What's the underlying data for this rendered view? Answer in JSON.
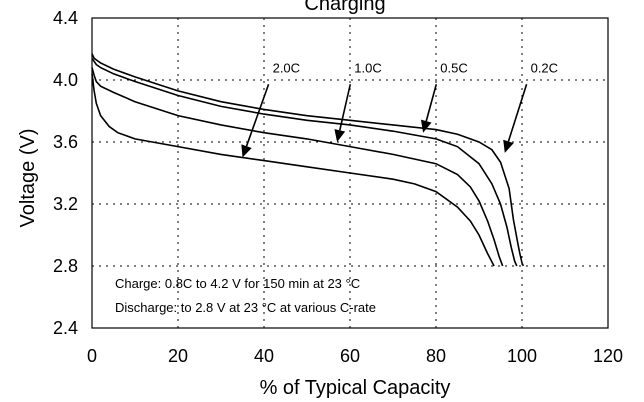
{
  "chart_data": {
    "type": "line",
    "title": "Charging",
    "xlabel": "% of Typical Capacity",
    "ylabel": "Voltage (V)",
    "xlim": [
      0,
      120
    ],
    "ylim": [
      2.4,
      4.4
    ],
    "x_ticks": [
      0,
      20,
      40,
      60,
      80,
      100,
      120
    ],
    "y_ticks": [
      "2.4",
      "2.8",
      "3.2",
      "3.6",
      "4.0",
      "4.4"
    ],
    "grid": true,
    "series": [
      {
        "name": "0.2C",
        "x": [
          0,
          0.5,
          1,
          2,
          5,
          10,
          20,
          30,
          40,
          50,
          60,
          70,
          80,
          85,
          90,
          93,
          95,
          97,
          98,
          99,
          99.5,
          100,
          100.3
        ],
        "y": [
          4.17,
          4.14,
          4.13,
          4.11,
          4.07,
          4.02,
          3.93,
          3.86,
          3.81,
          3.77,
          3.74,
          3.71,
          3.68,
          3.65,
          3.6,
          3.55,
          3.47,
          3.3,
          3.1,
          2.95,
          2.88,
          2.82,
          2.8
        ]
      },
      {
        "name": "0.5C",
        "x": [
          0,
          0.5,
          1,
          2,
          5,
          10,
          20,
          30,
          40,
          50,
          60,
          70,
          80,
          85,
          90,
          93,
          95,
          96.5,
          97.5,
          98.3,
          98.8
        ],
        "y": [
          4.14,
          4.12,
          4.1,
          4.08,
          4.04,
          3.99,
          3.9,
          3.83,
          3.78,
          3.74,
          3.71,
          3.67,
          3.62,
          3.57,
          3.46,
          3.33,
          3.2,
          3.05,
          2.92,
          2.83,
          2.8
        ]
      },
      {
        "name": "1.0C",
        "x": [
          0,
          0.5,
          1,
          2,
          5,
          10,
          20,
          30,
          40,
          50,
          60,
          70,
          80,
          85,
          88,
          90,
          92,
          93.5,
          94.7,
          95.5
        ],
        "y": [
          4.08,
          4.03,
          3.99,
          3.96,
          3.92,
          3.86,
          3.77,
          3.71,
          3.66,
          3.62,
          3.57,
          3.52,
          3.46,
          3.39,
          3.31,
          3.22,
          3.09,
          2.97,
          2.86,
          2.8
        ]
      },
      {
        "name": "2.0C",
        "x": [
          0,
          0.5,
          1,
          2,
          4,
          6,
          8,
          10,
          20,
          30,
          40,
          50,
          60,
          70,
          75,
          80,
          85,
          88,
          90,
          92,
          93.5
        ],
        "y": [
          4.04,
          3.93,
          3.85,
          3.77,
          3.7,
          3.66,
          3.64,
          3.62,
          3.57,
          3.52,
          3.48,
          3.44,
          3.4,
          3.36,
          3.33,
          3.28,
          3.18,
          3.09,
          3.0,
          2.88,
          2.8
        ]
      }
    ],
    "rate_labels": [
      {
        "text": "2.0C",
        "pos_x": 42,
        "pos_y": 4.05,
        "arrow_to_x": 35,
        "arrow_to_y": 3.5
      },
      {
        "text": "1.0C",
        "pos_x": 61,
        "pos_y": 4.05,
        "arrow_to_x": 57,
        "arrow_to_y": 3.6
      },
      {
        "text": "0.5C",
        "pos_x": 81,
        "pos_y": 4.05,
        "arrow_to_x": 77,
        "arrow_to_y": 3.66
      },
      {
        "text": "0.2C",
        "pos_x": 102,
        "pos_y": 4.05,
        "arrow_to_x": 96,
        "arrow_to_y": 3.53
      }
    ],
    "annotations": [
      "Charge: 0.8C to 4.2 V for 150 min at 23 °C",
      "Discharge: to 2.8 V at 23 °C at various C-rate"
    ]
  }
}
